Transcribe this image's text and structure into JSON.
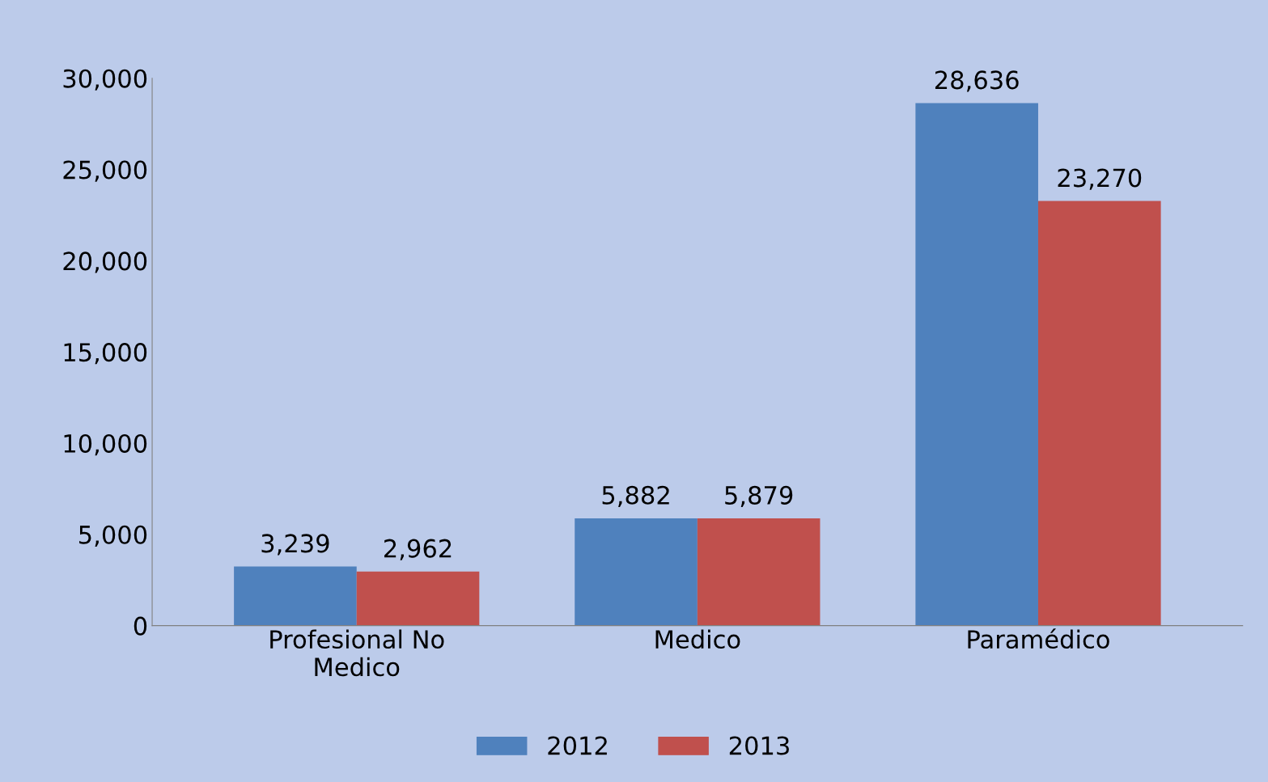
{
  "chart_data": {
    "type": "bar",
    "categories": [
      "Profesional No\nMedico",
      "Medico",
      "Paramédico"
    ],
    "series": [
      {
        "name": "2012",
        "color": "#4f81bd",
        "values": [
          3239,
          5882,
          28636
        ],
        "value_labels": [
          "3,239",
          "5,882",
          "28,636"
        ]
      },
      {
        "name": "2013",
        "color": "#c0504d",
        "values": [
          2962,
          5879,
          23270
        ],
        "value_labels": [
          "2,962",
          "5,879",
          "23,270"
        ]
      }
    ],
    "ylim": [
      0,
      30000
    ],
    "yticks": [
      {
        "value": 0,
        "label": "0"
      },
      {
        "value": 5000,
        "label": "5,000"
      },
      {
        "value": 10000,
        "label": "10,000"
      },
      {
        "value": 15000,
        "label": "15,000"
      },
      {
        "value": 20000,
        "label": "20,000"
      },
      {
        "value": 25000,
        "label": "25,000"
      },
      {
        "value": 30000,
        "label": "30,000"
      }
    ],
    "grid": false,
    "legend": "bottom"
  }
}
